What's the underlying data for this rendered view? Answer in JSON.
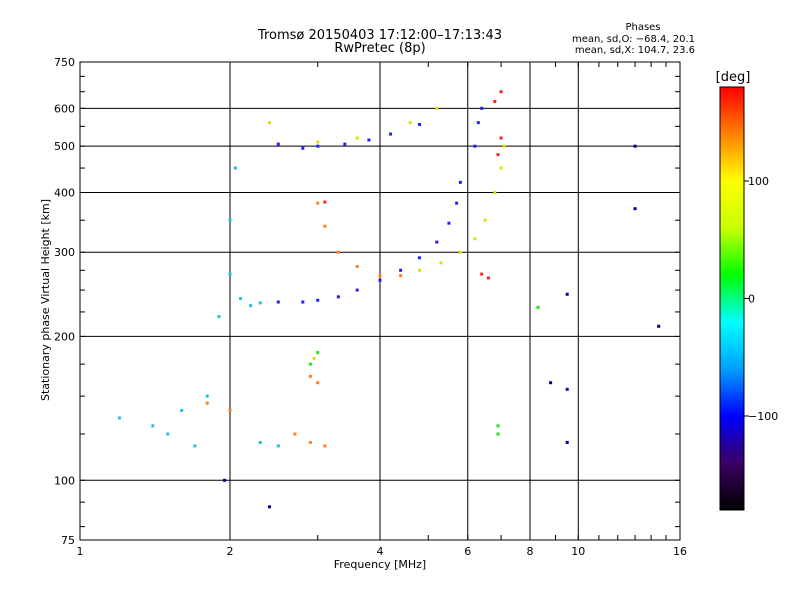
{
  "chart_data": {
    "type": "scatter",
    "title": "Tromsø 20150403 17:12:00–17:13:43",
    "subtitle": "RwPretec (8p)",
    "xlabel": "Frequency [MHz]",
    "ylabel": "Stationary phase Virtual Height [km]",
    "x_scale": "log",
    "y_scale": "log",
    "xlim": [
      1,
      16
    ],
    "ylim": [
      75,
      750
    ],
    "x_ticks": [
      1,
      2,
      4,
      6,
      8,
      10,
      16
    ],
    "x_tick_labels": [
      "1",
      "2",
      "4",
      "6",
      "8",
      "10",
      "16"
    ],
    "y_ticks": [
      75,
      100,
      200,
      300,
      400,
      500,
      600,
      750
    ],
    "y_tick_labels": [
      "75",
      "100",
      "200",
      "300",
      "400",
      "500",
      "600",
      "750"
    ],
    "grid": true,
    "phases_box": {
      "heading": "Phases",
      "line_o": "mean, sd,O: −68.4, 20.1",
      "line_x": "mean, sd,X: 104.7, 23.6"
    },
    "colorbar": {
      "label": "[deg]",
      "ticks": [
        100,
        0,
        -100
      ],
      "tick_labels": [
        "100",
        "0",
        "−100"
      ],
      "range": [
        -180,
        180
      ],
      "colors": [
        "#000000",
        "#3c0064",
        "#0000ff",
        "#00a0ff",
        "#00ffff",
        "#00ff00",
        "#c8ff00",
        "#ffff00",
        "#ff8000",
        "#ff0000"
      ]
    },
    "series": [
      {
        "color": "#2020ff",
        "points": [
          [
            2.5,
            236
          ],
          [
            2.8,
            236
          ],
          [
            3.0,
            238
          ],
          [
            3.3,
            242
          ],
          [
            3.6,
            250
          ],
          [
            4.0,
            262
          ],
          [
            4.4,
            275
          ],
          [
            4.8,
            292
          ],
          [
            5.2,
            315
          ],
          [
            5.5,
            345
          ],
          [
            5.7,
            380
          ],
          [
            5.8,
            420
          ],
          [
            6.2,
            500
          ],
          [
            6.3,
            560
          ],
          [
            6.4,
            600
          ],
          [
            2.5,
            505
          ],
          [
            2.8,
            495
          ],
          [
            3.0,
            500
          ],
          [
            3.4,
            505
          ],
          [
            3.8,
            515
          ],
          [
            4.2,
            530
          ],
          [
            4.8,
            555
          ]
        ]
      },
      {
        "color": "#20c0e0",
        "points": [
          [
            1.2,
            135
          ],
          [
            1.4,
            130
          ],
          [
            1.6,
            140
          ],
          [
            1.8,
            150
          ],
          [
            1.9,
            220
          ],
          [
            2.0,
            270
          ],
          [
            2.0,
            350
          ],
          [
            2.05,
            450
          ],
          [
            2.1,
            240
          ],
          [
            2.2,
            232
          ],
          [
            2.3,
            235
          ],
          [
            1.5,
            125
          ],
          [
            1.7,
            118
          ],
          [
            2.3,
            120
          ],
          [
            2.5,
            118
          ]
        ]
      },
      {
        "color": "#ff8020",
        "points": [
          [
            3.0,
            380
          ],
          [
            3.1,
            340
          ],
          [
            3.3,
            300
          ],
          [
            3.6,
            280
          ],
          [
            4.0,
            268
          ],
          [
            4.4,
            268
          ],
          [
            2.7,
            125
          ],
          [
            2.9,
            120
          ],
          [
            3.1,
            118
          ],
          [
            1.8,
            145
          ],
          [
            2.0,
            140
          ],
          [
            2.9,
            165
          ],
          [
            3.0,
            160
          ]
        ]
      },
      {
        "color": "#e0e000",
        "points": [
          [
            4.8,
            275
          ],
          [
            5.3,
            285
          ],
          [
            5.8,
            300
          ],
          [
            6.2,
            320
          ],
          [
            6.5,
            350
          ],
          [
            6.8,
            400
          ],
          [
            7.0,
            450
          ],
          [
            7.1,
            500
          ],
          [
            2.4,
            560
          ],
          [
            3.0,
            510
          ],
          [
            3.6,
            520
          ],
          [
            4.6,
            560
          ],
          [
            5.2,
            600
          ],
          [
            2.95,
            180
          ]
        ]
      },
      {
        "color": "#ff2020",
        "points": [
          [
            6.9,
            480
          ],
          [
            7.0,
            520
          ],
          [
            6.8,
            620
          ],
          [
            7.0,
            650
          ],
          [
            6.4,
            270
          ],
          [
            6.6,
            265
          ],
          [
            3.1,
            382
          ]
        ]
      },
      {
        "color": "#20e020",
        "points": [
          [
            2.9,
            175
          ],
          [
            3.0,
            185
          ],
          [
            6.9,
            125
          ],
          [
            6.9,
            130
          ],
          [
            8.3,
            230
          ]
        ]
      },
      {
        "color": "#000090",
        "points": [
          [
            9.5,
            155
          ],
          [
            8.8,
            160
          ],
          [
            9.5,
            120
          ],
          [
            13,
            370
          ],
          [
            13,
            500
          ],
          [
            14.5,
            210
          ],
          [
            1.95,
            100
          ],
          [
            2.4,
            88
          ],
          [
            9.5,
            245
          ]
        ]
      }
    ]
  }
}
